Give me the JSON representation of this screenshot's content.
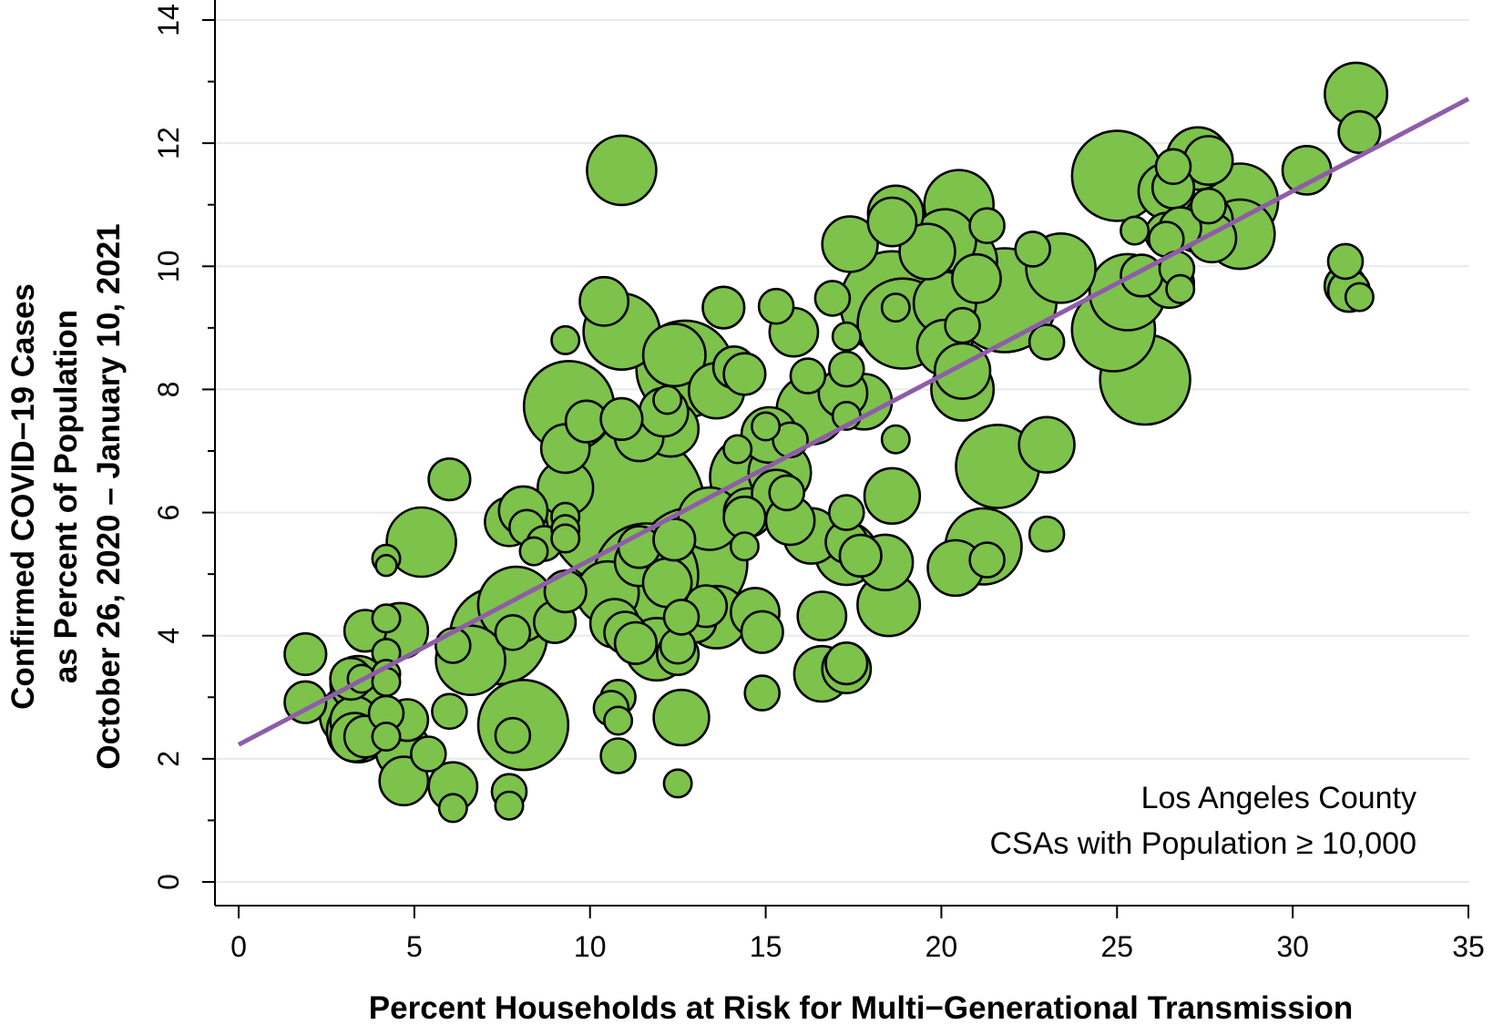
{
  "chart_data": {
    "type": "scatter",
    "title": "",
    "xlabel": "Percent Households at Risk for Multi−Generational Transmission",
    "ylabel_lines": [
      "Confirmed COVID−19 Cases",
      "as Percent of Population",
      "October 26, 2020 – January 10, 2021"
    ],
    "xlim": [
      0,
      35
    ],
    "ylim": [
      0,
      14
    ],
    "xticks": [
      "0",
      "5",
      "10",
      "15",
      "20",
      "25",
      "30",
      "35"
    ],
    "yticks": [
      "0",
      "2",
      "4",
      "6",
      "8",
      "10",
      "12",
      "14"
    ],
    "grid": true,
    "annotation_lines": [
      "Los Angeles County",
      "CSAs with Population ≥ 10,000"
    ],
    "colors": {
      "marker_fill": "#7DC24B",
      "marker_stroke": "#000000",
      "fit_line": "#8E5DA8",
      "grid": "#E3ECE8"
    },
    "fit_line": {
      "x": [
        0,
        35
      ],
      "y": [
        2.23,
        12.72
      ]
    },
    "points": [
      [
        1.9,
        3.7,
        6
      ],
      [
        1.9,
        2.92,
        6
      ],
      [
        3.2,
        3.3,
        6
      ],
      [
        3.2,
        2.7,
        9
      ],
      [
        3.4,
        3.22,
        8
      ],
      [
        3.3,
        2.62,
        7
      ],
      [
        3.4,
        2.45,
        9
      ],
      [
        3.3,
        2.35,
        7
      ],
      [
        3.6,
        4.08,
        6
      ],
      [
        3.6,
        2.36,
        6
      ],
      [
        3.5,
        3.3,
        4
      ],
      [
        4.2,
        5.25,
        4
      ],
      [
        4.2,
        5.14,
        3
      ],
      [
        4.2,
        4.28,
        4
      ],
      [
        4.2,
        3.72,
        4
      ],
      [
        4.2,
        3.38,
        4
      ],
      [
        4.2,
        3.25,
        4
      ],
      [
        4.2,
        2.74,
        5
      ],
      [
        4.2,
        2.36,
        4
      ],
      [
        4.6,
        4.08,
        8
      ],
      [
        4.8,
        2.63,
        6
      ],
      [
        4.7,
        2.12,
        8
      ],
      [
        4.7,
        1.64,
        7
      ],
      [
        5.2,
        5.52,
        10
      ],
      [
        5.4,
        2.08,
        5
      ],
      [
        6.0,
        6.54,
        6
      ],
      [
        6.1,
        3.84,
        5
      ],
      [
        6.0,
        2.77,
        5
      ],
      [
        6.1,
        1.55,
        7
      ],
      [
        6.1,
        1.2,
        4
      ],
      [
        6.6,
        3.6,
        10
      ],
      [
        7.4,
        4.0,
        14
      ],
      [
        7.8,
        4.05,
        5
      ],
      [
        7.7,
        5.85,
        7
      ],
      [
        7.9,
        4.5,
        11
      ],
      [
        8.1,
        6.03,
        7
      ],
      [
        8.2,
        5.76,
        5
      ],
      [
        8.1,
        2.55,
        13
      ],
      [
        7.8,
        2.38,
        5
      ],
      [
        7.7,
        1.47,
        5
      ],
      [
        7.7,
        1.24,
        4
      ],
      [
        8.4,
        5.37,
        4
      ],
      [
        8.7,
        5.5,
        5
      ],
      [
        9.0,
        4.22,
        6
      ],
      [
        9.3,
        8.8,
        4
      ],
      [
        9.3,
        7.04,
        7
      ],
      [
        9.3,
        6.4,
        8
      ],
      [
        9.3,
        5.93,
        4
      ],
      [
        9.3,
        5.73,
        4
      ],
      [
        9.3,
        5.58,
        4
      ],
      [
        9.3,
        4.72,
        6
      ],
      [
        9.4,
        7.73,
        13
      ],
      [
        9.9,
        7.48,
        6
      ],
      [
        10.4,
        9.43,
        7
      ],
      [
        10.5,
        4.7,
        9
      ],
      [
        10.7,
        4.2,
        7
      ],
      [
        10.9,
        8.94,
        11
      ],
      [
        10.9,
        11.56,
        10
      ],
      [
        10.9,
        7.52,
        6
      ],
      [
        10.8,
        3.0,
        5
      ],
      [
        10.6,
        2.82,
        5
      ],
      [
        10.8,
        2.62,
        4
      ],
      [
        10.8,
        2.05,
        5
      ],
      [
        11.0,
        6.08,
        23
      ],
      [
        11.0,
        4.05,
        6
      ],
      [
        11.3,
        3.88,
        6
      ],
      [
        11.4,
        5.2,
        7
      ],
      [
        11.4,
        5.44,
        6
      ],
      [
        11.4,
        7.23,
        7
      ],
      [
        11.6,
        4.98,
        15
      ],
      [
        11.9,
        3.78,
        9
      ],
      [
        12.1,
        7.63,
        7
      ],
      [
        12.2,
        7.83,
        4
      ],
      [
        12.2,
        4.86,
        7
      ],
      [
        12.3,
        7.36,
        8
      ],
      [
        12.4,
        5.56,
        6
      ],
      [
        12.5,
        3.7,
        6
      ],
      [
        12.5,
        3.83,
        5
      ],
      [
        12.4,
        8.56,
        9
      ],
      [
        12.6,
        2.67,
        8
      ],
      [
        12.5,
        1.6,
        4
      ],
      [
        12.6,
        4.3,
        5
      ],
      [
        12.7,
        8.33,
        14
      ],
      [
        12.9,
        5.18,
        16
      ],
      [
        13.0,
        4.23,
        6
      ],
      [
        13.4,
        5.9,
        9
      ],
      [
        13.3,
        4.48,
        6
      ],
      [
        13.6,
        4.3,
        9
      ],
      [
        13.6,
        7.98,
        8
      ],
      [
        13.8,
        9.33,
        6
      ],
      [
        14.1,
        8.36,
        6
      ],
      [
        14.2,
        7.03,
        4
      ],
      [
        14.4,
        8.25,
        6
      ],
      [
        14.4,
        5.92,
        6
      ],
      [
        14.5,
        6.0,
        7
      ],
      [
        14.4,
        5.45,
        4
      ],
      [
        14.6,
        6.58,
        12
      ],
      [
        14.7,
        4.38,
        7
      ],
      [
        14.9,
        4.06,
        6
      ],
      [
        14.9,
        3.07,
        5
      ],
      [
        15.0,
        7.4,
        4
      ],
      [
        15.1,
        7.26,
        8
      ],
      [
        15.3,
        6.3,
        7
      ],
      [
        15.3,
        9.35,
        5
      ],
      [
        15.4,
        6.65,
        9
      ],
      [
        15.6,
        6.32,
        5
      ],
      [
        15.7,
        5.87,
        7
      ],
      [
        15.7,
        7.18,
        5
      ],
      [
        15.8,
        8.93,
        7
      ],
      [
        16.2,
        8.22,
        5
      ],
      [
        16.3,
        7.67,
        10
      ],
      [
        16.3,
        5.62,
        8
      ],
      [
        16.6,
        4.32,
        7
      ],
      [
        16.6,
        3.38,
        8
      ],
      [
        16.9,
        9.48,
        5
      ],
      [
        17.2,
        7.94,
        7
      ],
      [
        17.3,
        7.57,
        4
      ],
      [
        17.3,
        6.0,
        5
      ],
      [
        17.3,
        5.52,
        6
      ],
      [
        17.3,
        5.33,
        9
      ],
      [
        17.3,
        3.46,
        7
      ],
      [
        17.3,
        3.55,
        6
      ],
      [
        17.4,
        10.36,
        8
      ],
      [
        17.3,
        8.86,
        4
      ],
      [
        17.3,
        8.33,
        5
      ],
      [
        17.8,
        7.8,
        8
      ],
      [
        17.7,
        5.3,
        6
      ],
      [
        18.4,
        5.19,
        8
      ],
      [
        18.5,
        4.5,
        9
      ],
      [
        18.6,
        6.27,
        8
      ],
      [
        18.6,
        10.72,
        7
      ],
      [
        18.7,
        10.86,
        8
      ],
      [
        18.7,
        7.19,
        4
      ],
      [
        18.9,
        9.07,
        13
      ],
      [
        18.6,
        9.4,
        15
      ],
      [
        18.7,
        9.33,
        4
      ],
      [
        19.6,
        10.24,
        8
      ],
      [
        20.1,
        10.42,
        9
      ],
      [
        20.1,
        8.68,
        8
      ],
      [
        20.1,
        9.4,
        9
      ],
      [
        20.4,
        5.1,
        8
      ],
      [
        20.5,
        11.0,
        10
      ],
      [
        20.6,
        10.08,
        10
      ],
      [
        20.6,
        8.0,
        9
      ],
      [
        20.6,
        8.3,
        8
      ],
      [
        20.6,
        9.04,
        5
      ],
      [
        21.0,
        9.8,
        7
      ],
      [
        21.2,
        5.45,
        11
      ],
      [
        21.3,
        5.23,
        5
      ],
      [
        21.3,
        10.66,
        5
      ],
      [
        21.6,
        6.75,
        12
      ],
      [
        21.8,
        9.45,
        15
      ],
      [
        22.6,
        10.28,
        5
      ],
      [
        23.0,
        8.77,
        5
      ],
      [
        23.0,
        7.1,
        8
      ],
      [
        23.0,
        5.65,
        5
      ],
      [
        23.4,
        9.97,
        10
      ],
      [
        24.9,
        8.97,
        12
      ],
      [
        25.0,
        11.47,
        13
      ],
      [
        25.3,
        9.58,
        11
      ],
      [
        25.5,
        10.58,
        4
      ],
      [
        25.8,
        8.16,
        13
      ],
      [
        25.7,
        9.85,
        6
      ],
      [
        26.4,
        11.22,
        8
      ],
      [
        26.4,
        10.44,
        5
      ],
      [
        26.6,
        11.28,
        6
      ],
      [
        26.6,
        11.62,
        5
      ],
      [
        26.4,
        10.53,
        6
      ],
      [
        26.5,
        9.72,
        7
      ],
      [
        26.7,
        9.96,
        5
      ],
      [
        26.8,
        9.63,
        4
      ],
      [
        26.8,
        10.62,
        6
      ],
      [
        27.3,
        11.75,
        9
      ],
      [
        27.6,
        11.72,
        7
      ],
      [
        27.3,
        10.68,
        8
      ],
      [
        27.6,
        10.75,
        7
      ],
      [
        27.6,
        10.98,
        5
      ],
      [
        27.7,
        10.46,
        7
      ],
      [
        28.5,
        10.52,
        10
      ],
      [
        28.5,
        11.05,
        11
      ],
      [
        30.4,
        11.56,
        7
      ],
      [
        31.5,
        10.08,
        5
      ],
      [
        31.5,
        9.68,
        6
      ],
      [
        31.6,
        9.6,
        6
      ],
      [
        31.9,
        9.5,
        4
      ],
      [
        31.8,
        12.8,
        9
      ],
      [
        31.9,
        12.18,
        6
      ]
    ]
  }
}
